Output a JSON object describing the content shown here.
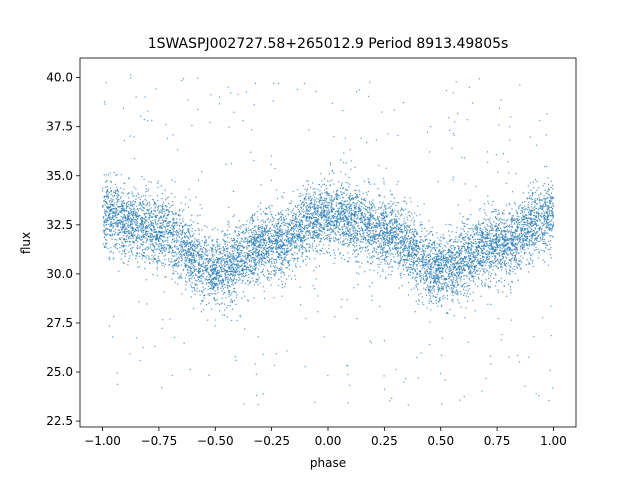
{
  "chart_data": {
    "type": "scatter",
    "title": "1SWASPJ002727.58+265012.9 Period 8913.49805s",
    "xlabel": "phase",
    "ylabel": "flux",
    "xlim": [
      -1.1,
      1.1
    ],
    "ylim": [
      22.2,
      41.0
    ],
    "xticks": [
      -1.0,
      -0.75,
      -0.5,
      -0.25,
      0.0,
      0.25,
      0.5,
      0.75,
      1.0
    ],
    "xtick_labels": [
      "−1.00",
      "−0.75",
      "−0.50",
      "−0.25",
      "0.00",
      "0.25",
      "0.50",
      "0.75",
      "1.00"
    ],
    "yticks": [
      22.5,
      25.0,
      27.5,
      30.0,
      32.5,
      35.0,
      37.5,
      40.0
    ],
    "ytick_labels": [
      "22.5",
      "25.0",
      "27.5",
      "30.0",
      "32.5",
      "35.0",
      "37.5",
      "40.0"
    ],
    "grid": false,
    "series": [
      {
        "color": "#1f77b4",
        "description_points": [
          {
            "phase": -1.0,
            "flux_center": 33.0
          },
          {
            "phase": -0.75,
            "flux_center": 32.2
          },
          {
            "phase": -0.5,
            "flux_center": 30.2
          },
          {
            "phase": -0.25,
            "flux_center": 31.5
          },
          {
            "phase": 0.0,
            "flux_center": 33.0
          },
          {
            "phase": 0.25,
            "flux_center": 32.2
          },
          {
            "phase": 0.5,
            "flux_center": 30.2
          },
          {
            "phase": 0.75,
            "flux_center": 31.5
          },
          {
            "phase": 1.0,
            "flux_center": 33.0
          }
        ],
        "band_halfwidth": 1.6,
        "outlier_range": [
          23.3,
          40.3
        ]
      }
    ]
  }
}
